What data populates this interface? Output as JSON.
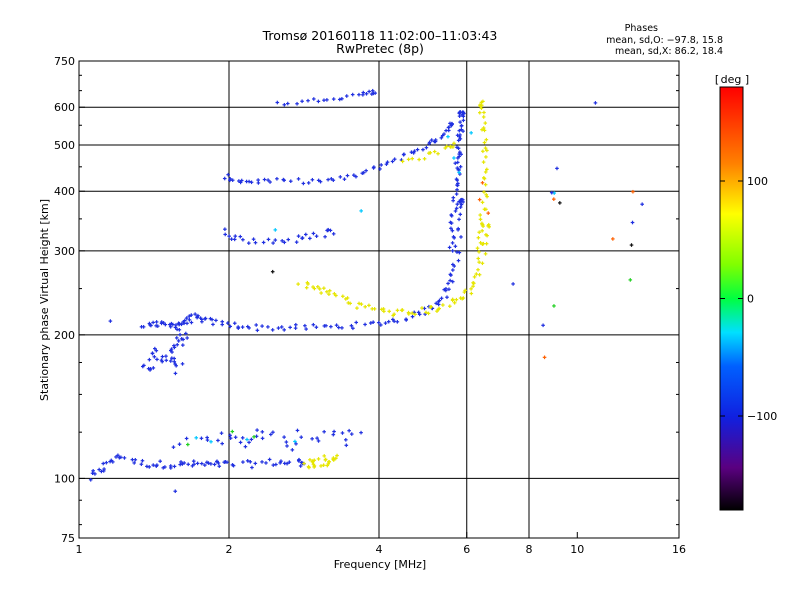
{
  "chart_data": {
    "type": "scatter",
    "title": "Tromsø 20160118 11:02:00–11:03:43",
    "subtitle": "RwPretec (8p)",
    "xlabel": "Frequency [MHz]",
    "ylabel": "Stationary phase Virtual Height [km]",
    "x_scale": "log",
    "y_scale": "log",
    "xlim": [
      1,
      16
    ],
    "ylim": [
      75,
      750
    ],
    "x_ticks": [
      1,
      2,
      4,
      6,
      8,
      10,
      16
    ],
    "y_ticks": [
      75,
      100,
      200,
      300,
      400,
      500,
      600,
      750
    ],
    "x_gridlines": [
      2,
      4,
      6,
      8
    ],
    "y_gridlines": [
      100,
      200,
      300,
      400,
      500,
      600
    ],
    "grid": true,
    "stats": {
      "heading": "Phases",
      "line_o": "mean, sd,O: −97.8, 15.8",
      "line_x": "mean, sd,X:  86.2, 18.4"
    },
    "colorbar": {
      "label": "deg",
      "min": -180,
      "max": 180,
      "ticks": [
        100,
        0,
        -100
      ],
      "tick_labels": [
        "100",
        "0",
        "−100"
      ]
    },
    "series": [
      {
        "color": "#2030e0",
        "phase": -100,
        "shape": "curve",
        "x": [
          1.05,
          1.1,
          1.15,
          1.2,
          1.3,
          1.4,
          1.5,
          1.6,
          1.7,
          1.8,
          1.9,
          2.0,
          2.2,
          2.4,
          2.6,
          2.8
        ],
        "y": [
          100,
          104,
          108,
          112,
          108,
          107,
          107,
          107,
          107,
          107,
          107,
          107,
          107,
          108,
          108,
          108
        ],
        "jitter": 0.015,
        "per": 5
      },
      {
        "color": "#2030e0",
        "phase": -100,
        "shape": "curve",
        "x": [
          1.35,
          1.45,
          1.55,
          1.62,
          1.7,
          1.8,
          2.0,
          2.3,
          2.7,
          3.2,
          3.8,
          4.4,
          5.0,
          5.4,
          5.6,
          5.75,
          5.85
        ],
        "y": [
          210,
          210,
          210,
          212,
          218,
          214,
          210,
          207,
          207,
          208,
          210,
          215,
          225,
          240,
          260,
          300,
          380
        ],
        "jitter": 0.012,
        "per": 8
      },
      {
        "color": "#2030e0",
        "phase": -100,
        "shape": "curve",
        "x": [
          5.55,
          5.65,
          5.72,
          5.78,
          5.82,
          5.86
        ],
        "y": [
          300,
          360,
          420,
          470,
          520,
          580
        ],
        "jitter": 0.012,
        "per": 10
      },
      {
        "color": "#2030e0",
        "phase": -100,
        "shape": "curve",
        "x": [
          1.95,
          2.1,
          2.3,
          2.6,
          3.0,
          3.4,
          3.8,
          4.2,
          4.6,
          5.0,
          5.3,
          5.55
        ],
        "y": [
          430,
          420,
          420,
          420,
          420,
          425,
          440,
          460,
          480,
          500,
          520,
          550
        ],
        "jitter": 0.01,
        "per": 6
      },
      {
        "color": "#2030e0",
        "phase": -100,
        "shape": "curve",
        "x": [
          1.95,
          2.05,
          2.2,
          2.4,
          2.6,
          2.8,
          3.0,
          3.2
        ],
        "y": [
          330,
          320,
          315,
          315,
          315,
          318,
          322,
          330
        ],
        "jitter": 0.015,
        "per": 4
      },
      {
        "color": "#2030e0",
        "phase": -100,
        "shape": "curve",
        "x": [
          2.5,
          2.8,
          3.1,
          3.4,
          3.7,
          3.9
        ],
        "y": [
          610,
          615,
          625,
          630,
          640,
          645
        ],
        "jitter": 0.008,
        "per": 4
      },
      {
        "color": "#2030e0",
        "phase": -100,
        "shape": "curve",
        "x": [
          1.35,
          1.4,
          1.45,
          1.5,
          1.55,
          1.6,
          1.62
        ],
        "y": [
          170,
          175,
          185,
          180,
          170,
          190,
          200
        ],
        "jitter": 0.03,
        "per": 6
      },
      {
        "color": "#2030e0",
        "phase": -100,
        "shape": "scatter",
        "x": [
          1.6,
          1.75,
          1.9,
          2.0,
          2.1,
          2.2,
          2.35,
          2.5,
          2.6,
          2.8,
          3.0,
          3.2,
          3.4,
          3.6
        ],
        "y": [
          120,
          118,
          122,
          125,
          118,
          120,
          124,
          121,
          118,
          122,
          120,
          124,
          121,
          125
        ],
        "jitter": 0.03,
        "per": 3
      },
      {
        "color": "#e6e600",
        "phase": 100,
        "shape": "curve",
        "x": [
          2.8,
          3.0,
          3.2,
          3.5,
          3.8,
          4.2,
          4.6,
          5.0,
          5.4,
          5.8,
          6.1,
          6.3,
          6.45,
          6.55
        ],
        "y": [
          255,
          250,
          245,
          235,
          228,
          223,
          222,
          225,
          230,
          238,
          250,
          270,
          300,
          340
        ],
        "jitter": 0.015,
        "per": 6
      },
      {
        "color": "#e6e600",
        "phase": 100,
        "shape": "curve",
        "x": [
          6.35,
          6.45,
          6.5,
          6.55,
          6.55,
          6.5,
          6.45,
          6.4
        ],
        "y": [
          300,
          340,
          380,
          420,
          470,
          520,
          570,
          610
        ],
        "jitter": 0.012,
        "per": 5
      },
      {
        "color": "#e6e600",
        "phase": 100,
        "shape": "curve",
        "x": [
          2.85,
          2.95,
          3.05,
          3.15,
          3.25
        ],
        "y": [
          107,
          108,
          108,
          109,
          110
        ],
        "jitter": 0.02,
        "per": 5
      },
      {
        "color": "#e6e600",
        "phase": 100,
        "shape": "curve",
        "x": [
          4.5,
          4.8,
          5.1,
          5.4,
          5.6
        ],
        "y": [
          465,
          470,
          478,
          488,
          500
        ],
        "jitter": 0.01,
        "per": 3
      },
      {
        "color": "#00c8ff",
        "phase": -40,
        "shape": "scatter",
        "x": [
          1.7,
          1.85,
          2.15,
          2.45,
          2.7,
          3.7,
          5.55,
          5.7,
          5.8,
          6.1,
          8.95
        ],
        "y": [
          122,
          118,
          120,
          330,
          120,
          360,
          520,
          470,
          440,
          535,
          398
        ],
        "jitter": 0.01,
        "per": 1
      },
      {
        "color": "#20d020",
        "phase": 0,
        "shape": "scatter",
        "x": [
          1.65,
          2.05,
          2.25,
          9.0,
          12.8
        ],
        "y": [
          118,
          125,
          122,
          232,
          262
        ],
        "jitter": 0.01,
        "per": 1
      },
      {
        "color": "#ff6000",
        "phase": 150,
        "shape": "scatter",
        "x": [
          6.35,
          6.5,
          6.6,
          8.5,
          9.05,
          11.9,
          12.8
        ],
        "y": [
          380,
          420,
          360,
          180,
          382,
          320,
          402
        ],
        "jitter": 0.01,
        "per": 1
      },
      {
        "color": "#101010",
        "phase": -160,
        "shape": "scatter",
        "x": [
          2.45,
          9.2,
          12.8
        ],
        "y": [
          270,
          380,
          310
        ],
        "jitter": 0.005,
        "per": 1
      },
      {
        "color": "#2030e0",
        "phase": -100,
        "shape": "scatter",
        "x": [
          7.5,
          8.5,
          8.9,
          9.0,
          10.8,
          12.8,
          13.5,
          1.15,
          1.55
        ],
        "y": [
          255,
          210,
          400,
          450,
          610,
          345,
          380,
          215,
          95
        ],
        "jitter": 0.01,
        "per": 1
      }
    ]
  }
}
